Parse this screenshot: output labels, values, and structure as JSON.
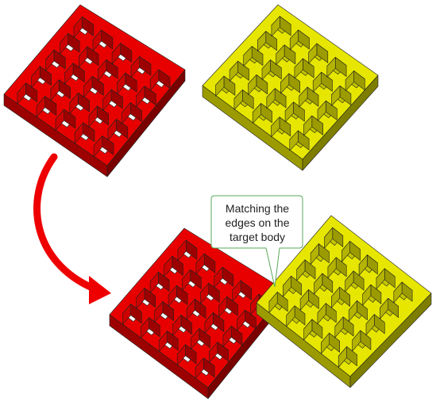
{
  "callout": {
    "lines": [
      "Matching the",
      "edges on the",
      "target body"
    ]
  },
  "grids": [
    {
      "id": "grid-red-top",
      "color": "red",
      "cells": 5
    },
    {
      "id": "grid-yellow-top",
      "color": "yellow",
      "cells": 5
    },
    {
      "id": "grid-red-bottom",
      "color": "red",
      "cells": 5
    },
    {
      "id": "grid-yellow-bottom",
      "color": "yellow",
      "cells": 5
    }
  ],
  "colors": {
    "red_top": "#e80000",
    "red_side": "#9c0000",
    "red_inner": "#b80000",
    "yellow_top": "#e6e600",
    "yellow_side": "#9b9b00",
    "yellow_inner": "#c4c400",
    "arrow": "#ee0000",
    "callout_border": "#5aa95a"
  }
}
